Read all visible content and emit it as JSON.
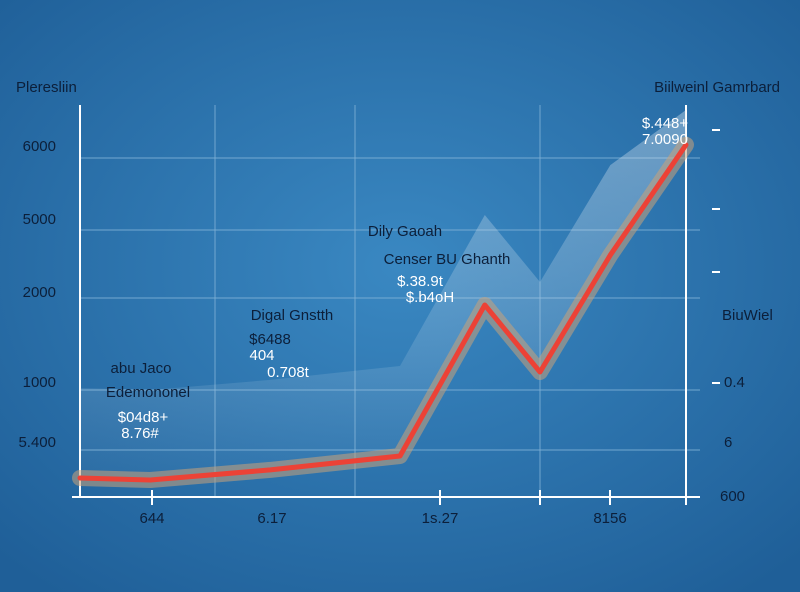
{
  "chart_data": {
    "type": "line",
    "title": "Pleresliin",
    "subtitle": "Biilweinl Gamrbard",
    "y_labels": [
      "6000",
      "5000",
      "2000",
      "1000",
      "5.400"
    ],
    "x_labels": [
      "644",
      "6.17",
      "1s.27",
      "8156"
    ],
    "right_labels": [
      "BiuWiel",
      "0.4",
      "6",
      "600"
    ],
    "xlim": [
      0,
      100
    ],
    "ylim": [
      0,
      100
    ],
    "x": [
      0,
      11.6,
      31.4,
      52.8,
      66.8,
      75.9,
      87.5,
      100
    ],
    "values": [
      4.9,
      4.4,
      7,
      10.6,
      49.6,
      32.3,
      62.5,
      91
    ],
    "color": "#ec4236",
    "grid": true,
    "annotations": [
      [
        "Dily Gaoah",
        "Censer BU Ghanth",
        "$.38.9t",
        "$.b4oH"
      ],
      [
        "Digal Gnstth",
        "$6488",
        "404",
        "0.708t"
      ],
      [
        "abu Jaco",
        "Edemononel",
        "$04d8+",
        "8.76#"
      ],
      [
        "$.448+",
        "7.0090"
      ]
    ]
  }
}
